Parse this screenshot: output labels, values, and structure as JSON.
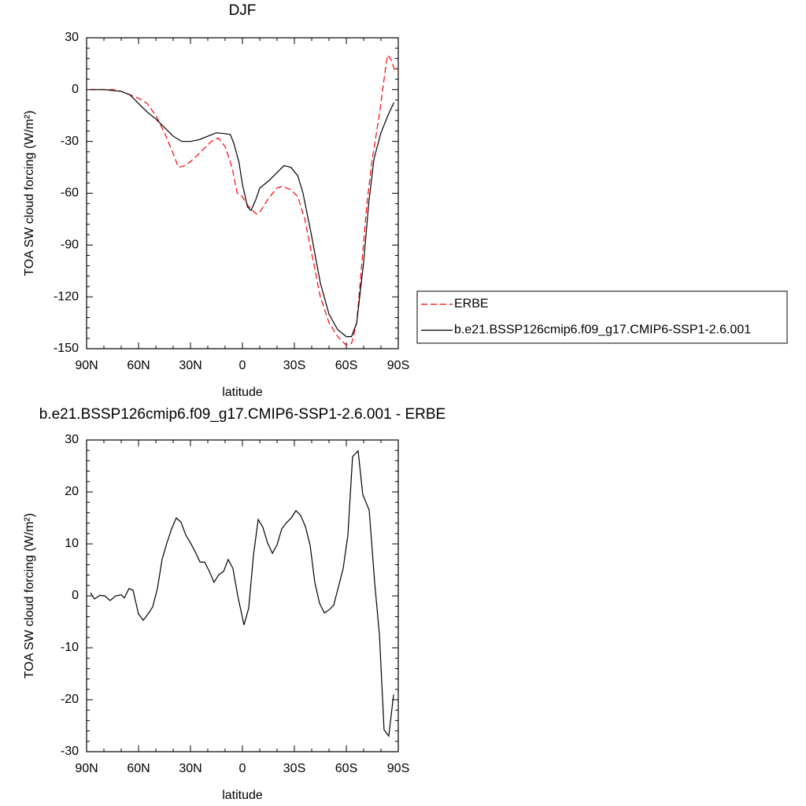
{
  "chart_data": [
    {
      "type": "line",
      "title": "DJF",
      "xlabel": "latitude",
      "ylabel": "TOA SW cloud forcing (W/m²)",
      "xlim": [
        90,
        -90
      ],
      "ylim": [
        -150,
        30
      ],
      "xticks": [
        {
          "value": 90,
          "label": "90N"
        },
        {
          "value": 60,
          "label": "60N"
        },
        {
          "value": 30,
          "label": "30N"
        },
        0,
        {
          "value": -30,
          "label": "30S"
        },
        {
          "value": -60,
          "label": "60S"
        },
        {
          "value": -90,
          "label": "90S"
        }
      ],
      "yticks": [
        -150,
        -120,
        -90,
        -60,
        -30,
        0,
        30
      ],
      "legend": "right",
      "series": [
        {
          "name": "ERBE",
          "color": "#ff0000",
          "dashed": true,
          "x": [
            88,
            80,
            75,
            70,
            65,
            60,
            55,
            50,
            45,
            40,
            37,
            33,
            28,
            23,
            18,
            14,
            10,
            6,
            3,
            0,
            -3,
            -8,
            -10,
            -15,
            -20,
            -23,
            -28,
            -32,
            -36,
            -40,
            -45,
            -50,
            -55,
            -60,
            -63,
            -66,
            -69,
            -72,
            -75,
            -79,
            -81,
            -83,
            -84,
            -86,
            -88
          ],
          "values": [
            0,
            0,
            0,
            -1,
            -3,
            -5,
            -8,
            -15,
            -25,
            -37,
            -45,
            -44,
            -40,
            -35,
            -30,
            -28,
            -33,
            -45,
            -60,
            -62,
            -67,
            -72,
            -71,
            -63,
            -57,
            -56,
            -58,
            -62,
            -75,
            -95,
            -120,
            -135,
            -143,
            -148,
            -147,
            -135,
            -100,
            -65,
            -40,
            -15,
            0,
            15,
            20,
            17,
            11
          ]
        },
        {
          "name": "b.e21.BSSP126cmip6.f09_g17.CMIP6-SSP1-2.6.001",
          "color": "#000000",
          "dashed": false,
          "x": [
            88,
            80,
            70,
            65,
            60,
            55,
            50,
            45,
            40,
            35,
            30,
            25,
            20,
            15,
            10,
            7,
            5,
            2,
            0,
            -3,
            -5,
            -8,
            -10,
            -15,
            -20,
            -24,
            -28,
            -32,
            -35,
            -40,
            -45,
            -50,
            -55,
            -60,
            -63,
            -66,
            -70,
            -73,
            -76,
            -80,
            -84,
            -87.5
          ],
          "values": [
            0,
            0,
            -1,
            -3,
            -8,
            -13,
            -17,
            -22,
            -27,
            -30,
            -30,
            -29,
            -27,
            -25,
            -25.5,
            -26,
            -31,
            -42,
            -55,
            -68,
            -70,
            -63,
            -57,
            -53,
            -48,
            -44,
            -45,
            -50,
            -60,
            -85,
            -112,
            -130,
            -139,
            -143,
            -143,
            -135,
            -100,
            -65,
            -40,
            -25,
            -15,
            -7.5
          ]
        }
      ]
    },
    {
      "type": "line",
      "title": "b.e21.BSSP126cmip6.f09_g17.CMIP6-SSP1-2.6.001 - ERBE",
      "xlabel": "latitude",
      "ylabel": "TOA SW cloud forcing (W/m²)",
      "xlim": [
        90,
        -90
      ],
      "ylim": [
        -30,
        30
      ],
      "xticks": [
        {
          "value": 90,
          "label": "90N"
        },
        {
          "value": 60,
          "label": "60N"
        },
        {
          "value": 30,
          "label": "30N"
        },
        0,
        {
          "value": -30,
          "label": "30S"
        },
        {
          "value": -60,
          "label": "60S"
        },
        {
          "value": -90,
          "label": "90S"
        }
      ],
      "yticks": [
        -30,
        -20,
        -10,
        0,
        10,
        20,
        30
      ],
      "color": "#000000",
      "x": [
        87.7,
        85.5,
        82.3,
        79.5,
        76.4,
        73.2,
        70,
        68.2,
        65.5,
        63.2,
        60,
        57.3,
        54.5,
        51.8,
        49.1,
        46.4,
        43.6,
        40.9,
        38.2,
        35.5,
        32.7,
        30,
        27.3,
        24.5,
        21.8,
        19.1,
        16.4,
        13.6,
        10.9,
        8.2,
        5.5,
        2.7,
        -0.9,
        -3.6,
        -6.4,
        -9.1,
        -11.8,
        -14.5,
        -17.3,
        -20,
        -22.7,
        -25.5,
        -28.2,
        -30.9,
        -33.6,
        -36.4,
        -39.1,
        -41.8,
        -44.5,
        -47.3,
        -50,
        -52.7,
        -55.5,
        -58.2,
        -60.9,
        -63.6,
        -66.8,
        -69.5,
        -73.2,
        -76.4,
        -79.1,
        -81.8,
        -84.5,
        -87.3
      ],
      "values": [
        0.6,
        -0.6,
        0.1,
        0,
        -0.9,
        0,
        0.2,
        -0.4,
        1.4,
        1.1,
        -3.5,
        -4.7,
        -3.5,
        -2.1,
        1.4,
        7,
        10.2,
        12.9,
        15,
        14.2,
        11.7,
        10.2,
        8.5,
        6.5,
        6.5,
        4.7,
        2.6,
        4.1,
        4.7,
        7,
        5.3,
        0,
        -5.6,
        -2.4,
        7.9,
        14.7,
        13.2,
        10.2,
        8.2,
        9.8,
        12.9,
        14.1,
        15,
        16.4,
        15.5,
        13.3,
        9.7,
        2.6,
        -1.4,
        -3.3,
        -2.7,
        -1.8,
        1.8,
        5.3,
        11.7,
        26.8,
        27.9,
        19.5,
        16.5,
        2.4,
        -7.4,
        -25.8,
        -27,
        -19
      ]
    }
  ]
}
